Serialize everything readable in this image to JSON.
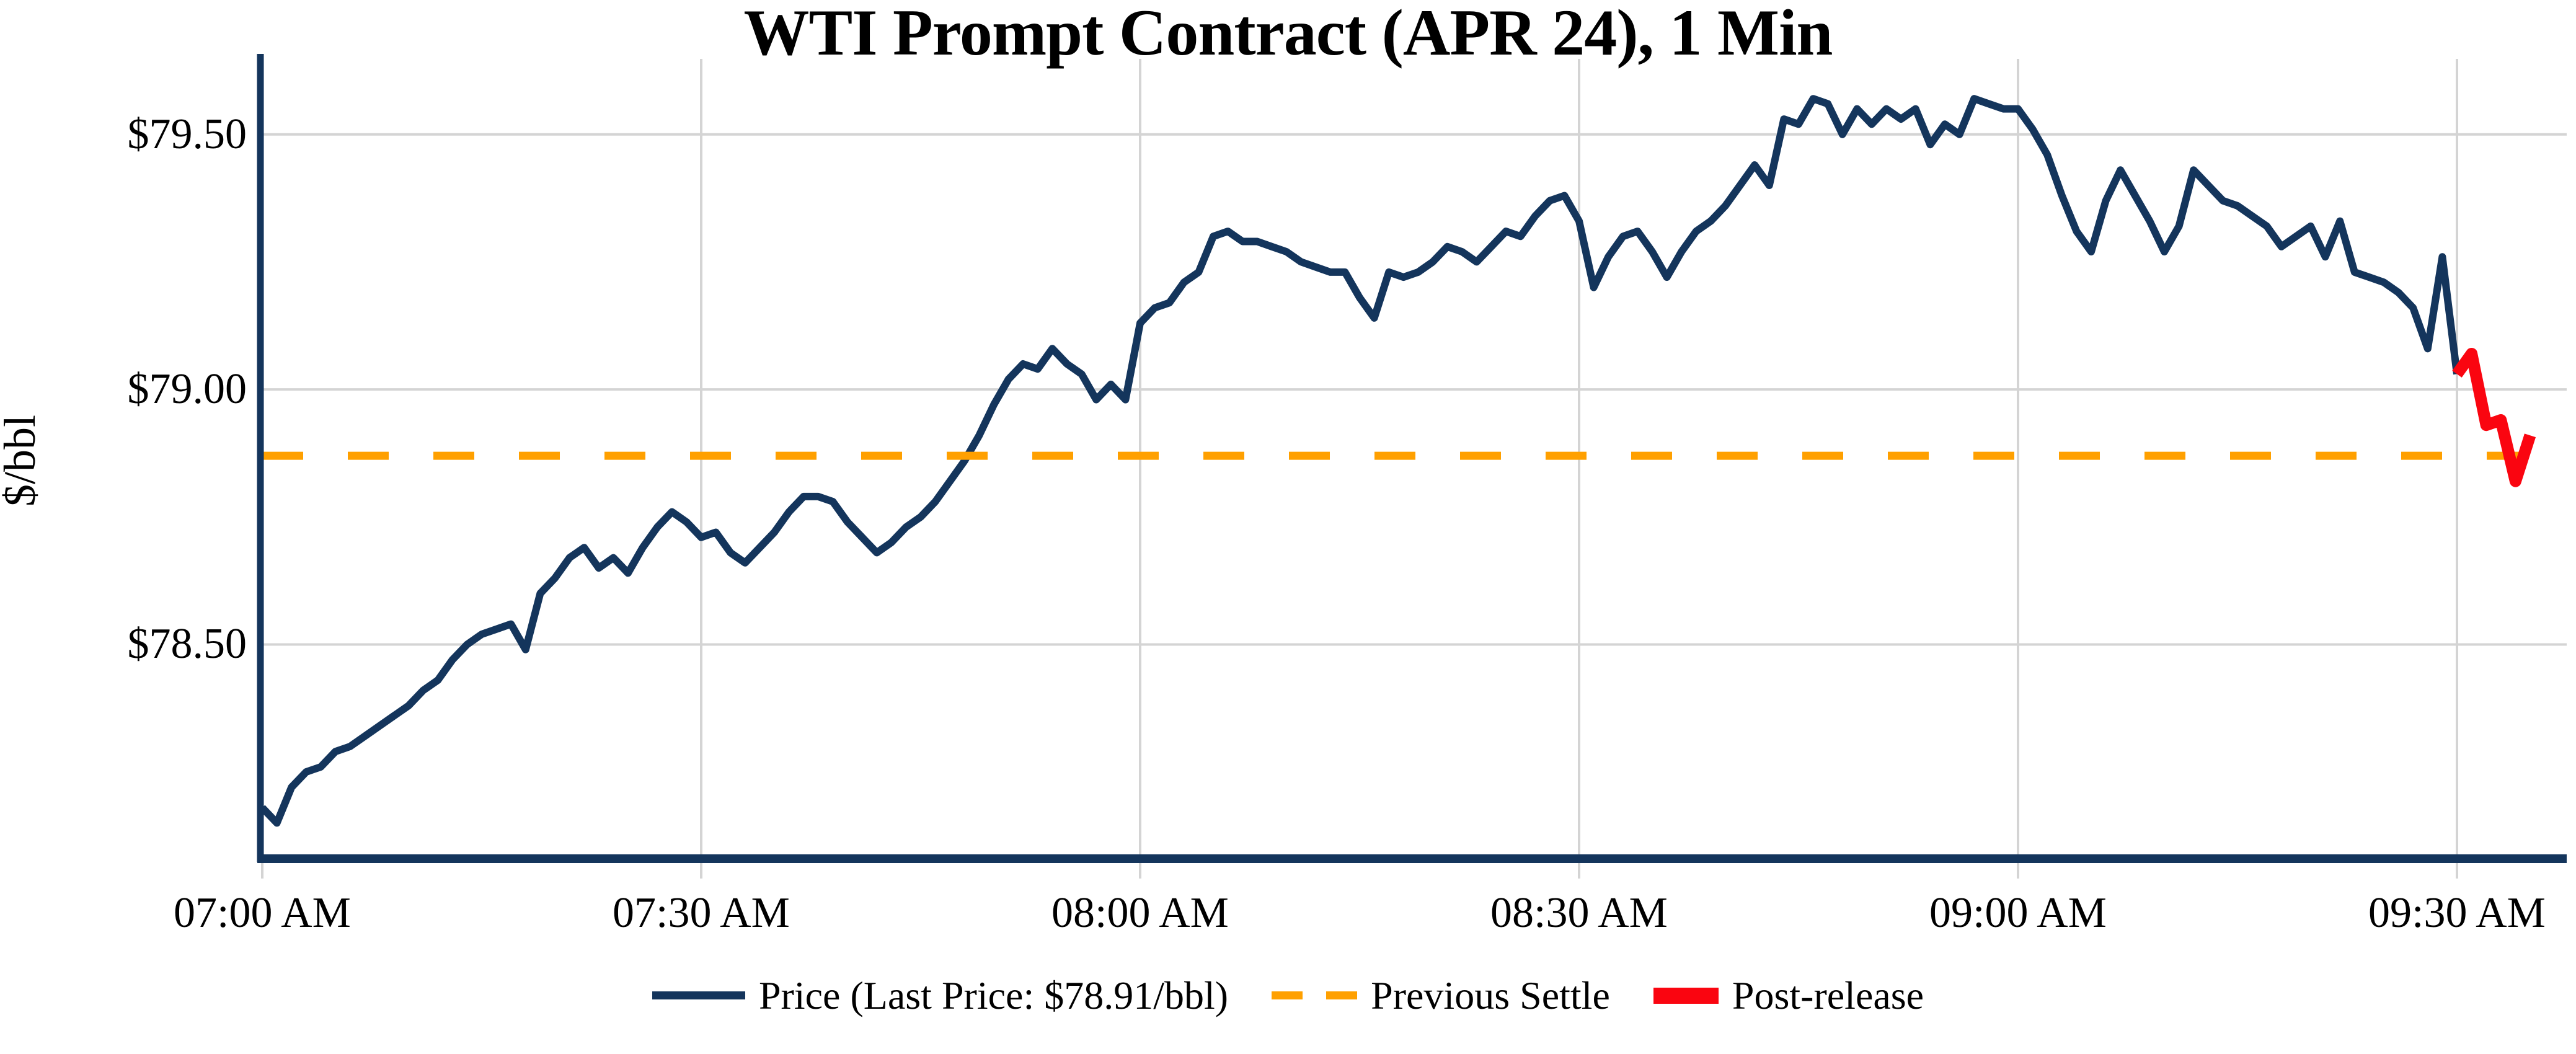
{
  "title": "WTI Prompt Contract (APR 24), 1 Min",
  "colors": {
    "price": "#14355c",
    "settle": "#ffa000",
    "post": "#fa0510",
    "grid": "#d4d4d4",
    "spine": "#14355c",
    "text": "#000000",
    "background": "#ffffff"
  },
  "legend": {
    "items": [
      {
        "label": "Price (Last Price: $78.91/bbl)",
        "swatch": "price-line"
      },
      {
        "label": "Previous Settle",
        "swatch": "orange-dashes"
      },
      {
        "label": "Post-release",
        "swatch": "red-bar"
      }
    ]
  },
  "last_price_text": "$78.91/bbl",
  "chart_data": {
    "type": "line",
    "title": "WTI Prompt Contract (APR 24), 1 Min",
    "xlabel": "",
    "ylabel": "$/bbl",
    "grid": true,
    "legend_position": "bottom-center",
    "x_unit": "minutes-since-07:00AM",
    "x_interval_minutes": 1,
    "xlim_minutes": [
      0,
      157.5
    ],
    "ylim": [
      78.08,
      79.648
    ],
    "x_axis": {
      "tick_labels": [
        "07:00 AM",
        "07:30 AM",
        "08:00 AM",
        "08:30 AM",
        "09:00 AM",
        "09:30 AM"
      ],
      "tick_minutes": [
        0,
        30,
        60,
        90,
        120,
        150
      ]
    },
    "y_axis": {
      "label": "$/bbl",
      "tick_labels": [
        "$78.50",
        "$79.00",
        "$79.50"
      ],
      "tick_values": [
        78.5,
        79.0,
        79.5
      ]
    },
    "series": [
      {
        "name": "Price (Last Price: $78.91/bbl)",
        "type": "line",
        "style": "solid",
        "color": "#14355c",
        "width": 12,
        "start_minute": 0,
        "values": [
          78.18,
          78.15,
          78.22,
          78.25,
          78.26,
          78.29,
          78.3,
          78.32,
          78.34,
          78.36,
          78.38,
          78.41,
          78.43,
          78.47,
          78.5,
          78.52,
          78.53,
          78.54,
          78.49,
          78.6,
          78.63,
          78.67,
          78.69,
          78.65,
          78.67,
          78.64,
          78.69,
          78.73,
          78.76,
          78.74,
          78.71,
          78.72,
          78.68,
          78.66,
          78.69,
          78.72,
          78.76,
          78.79,
          78.79,
          78.78,
          78.74,
          78.71,
          78.68,
          78.7,
          78.73,
          78.75,
          78.78,
          78.82,
          78.86,
          78.91,
          78.97,
          79.02,
          79.05,
          79.04,
          79.08,
          79.05,
          79.03,
          78.98,
          79.01,
          78.98,
          79.13,
          79.16,
          79.17,
          79.21,
          79.23,
          79.3,
          79.31,
          79.29,
          79.29,
          79.28,
          79.27,
          79.25,
          79.24,
          79.23,
          79.23,
          79.18,
          79.14,
          79.23,
          79.22,
          79.23,
          79.25,
          79.28,
          79.27,
          79.25,
          79.28,
          79.31,
          79.3,
          79.34,
          79.37,
          79.38,
          79.33,
          79.2,
          79.26,
          79.3,
          79.31,
          79.27,
          79.22,
          79.27,
          79.31,
          79.33,
          79.36,
          79.4,
          79.44,
          79.4,
          79.53,
          79.52,
          79.57,
          79.56,
          79.5,
          79.55,
          79.52,
          79.55,
          79.53,
          79.55,
          79.48,
          79.52,
          79.5,
          79.57,
          79.56,
          79.55,
          79.55,
          79.51,
          79.46,
          79.38,
          79.31,
          79.27,
          79.37,
          79.43,
          79.38,
          79.33,
          79.27,
          79.32,
          79.43,
          79.4,
          79.37,
          79.36,
          79.34,
          79.32,
          79.28,
          79.3,
          79.32,
          79.26,
          79.33,
          79.23,
          79.22,
          79.21,
          79.19,
          79.16,
          79.08,
          79.26,
          79.03
        ]
      },
      {
        "name": "Previous Settle",
        "type": "hline",
        "style": "dashed",
        "color": "#ffa000",
        "width": 13,
        "value": 78.87
      },
      {
        "name": "Post-release",
        "type": "line",
        "style": "solid",
        "color": "#fa0510",
        "width": 19,
        "start_minute": 150,
        "values": [
          79.03,
          79.07,
          78.93,
          78.94,
          78.82,
          78.91
        ]
      }
    ]
  }
}
